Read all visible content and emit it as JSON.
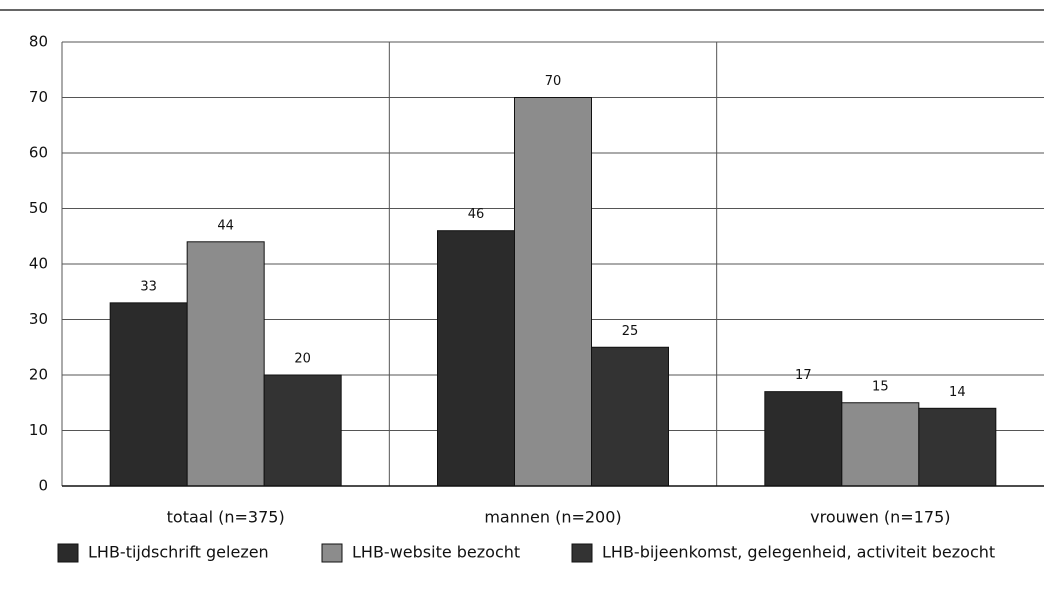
{
  "chart_data": {
    "type": "bar",
    "categories": [
      "totaal (n=375)",
      "mannen (n=200)",
      "vrouwen (n=175)"
    ],
    "series": [
      {
        "name": "LHB-tijdschrift gelezen",
        "color": "#2b2b2b",
        "values": [
          33,
          46,
          17
        ]
      },
      {
        "name": "LHB-website bezocht",
        "color": "#8c8c8c",
        "values": [
          44,
          70,
          15
        ]
      },
      {
        "name": "LHB-bijeenkomst, gelegenheid, activiteit bezocht",
        "color": "#333333",
        "values": [
          20,
          25,
          14
        ]
      }
    ],
    "ylim": [
      0,
      80
    ],
    "yticks": [
      0,
      10,
      20,
      30,
      40,
      50,
      60,
      70,
      80
    ],
    "grid": true,
    "legend": "bottom"
  }
}
